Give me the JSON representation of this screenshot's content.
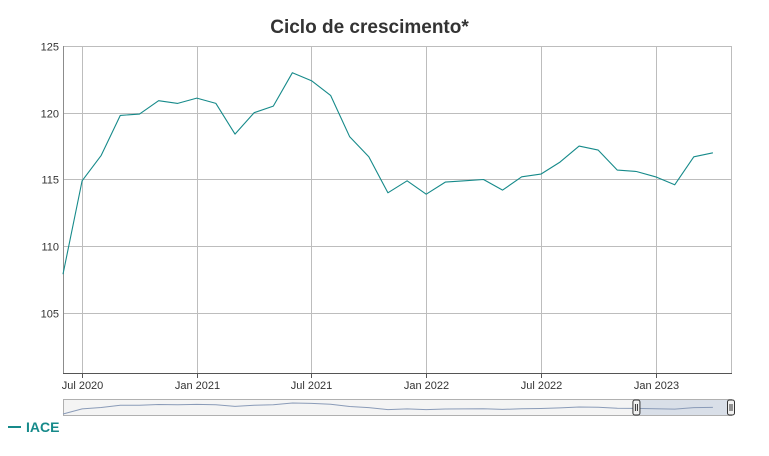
{
  "chart_data": {
    "type": "line",
    "title": "Ciclo de crescimento*",
    "xlabel": "",
    "ylabel": "",
    "ylim": [
      100.5,
      125
    ],
    "y_ticks": [
      105,
      110,
      115,
      120,
      125
    ],
    "x_ticks": [
      {
        "date": "2020-07",
        "label": "Jul 2020"
      },
      {
        "date": "2021-01",
        "label": "Jan 2021"
      },
      {
        "date": "2021-07",
        "label": "Jul 2021"
      },
      {
        "date": "2022-01",
        "label": "Jan 2022"
      },
      {
        "date": "2022-07",
        "label": "Jul 2022"
      },
      {
        "date": "2023-01",
        "label": "Jan 2023"
      }
    ],
    "x_range": [
      "2020-06",
      "2023-05"
    ],
    "grid": true,
    "legend_position": "bottom-left",
    "series": [
      {
        "name": "IACE",
        "color": "#168a8a",
        "x": [
          "2020-06",
          "2020-07",
          "2020-08",
          "2020-09",
          "2020-10",
          "2020-11",
          "2020-12",
          "2021-01",
          "2021-02",
          "2021-03",
          "2021-04",
          "2021-05",
          "2021-06",
          "2021-07",
          "2021-08",
          "2021-09",
          "2021-10",
          "2021-11",
          "2021-12",
          "2022-01",
          "2022-02",
          "2022-03",
          "2022-04",
          "2022-05",
          "2022-06",
          "2022-07",
          "2022-08",
          "2022-09",
          "2022-10",
          "2022-11",
          "2022-12",
          "2023-01",
          "2023-02",
          "2023-03",
          "2023-04"
        ],
        "values": [
          107.9,
          114.9,
          116.8,
          119.8,
          119.9,
          120.9,
          120.7,
          121.1,
          120.7,
          118.4,
          120.0,
          120.5,
          123.0,
          122.4,
          121.3,
          118.2,
          116.7,
          114.0,
          114.9,
          113.9,
          114.8,
          114.9,
          115.0,
          114.2,
          115.2,
          115.4,
          116.3,
          117.5,
          117.2,
          115.7,
          115.6,
          115.2,
          114.6,
          116.7,
          117.0
        ]
      }
    ],
    "navigator": {
      "range_start": "2022-12",
      "range_end": "2023-05"
    }
  }
}
